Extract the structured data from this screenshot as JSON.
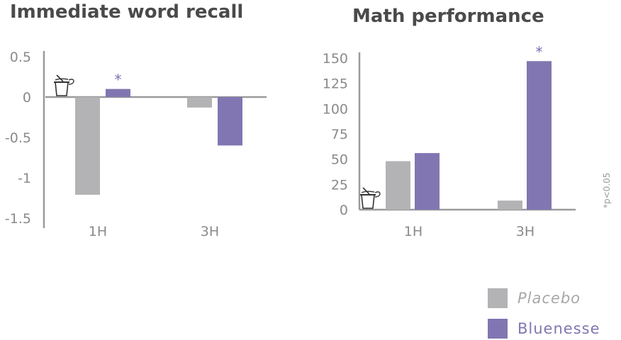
{
  "colors": {
    "placebo": "#b3b3b5",
    "bluenesse": "#8276b2",
    "axis": "#9a9a9a",
    "tick": "#8a8a8a",
    "star": "#7a6fb0"
  },
  "footnote": "*p<0.05",
  "legend": [
    {
      "name": "Placebo",
      "color": "#b3b3b5",
      "italic": true
    },
    {
      "name": "Bluenesse",
      "color": "#8276b2",
      "italic": false
    }
  ],
  "chart_data": [
    {
      "type": "bar",
      "title": "Immediate word recall",
      "categories": [
        "1H",
        "3H"
      ],
      "series": [
        {
          "name": "Placebo",
          "values": [
            -1.21,
            -0.13
          ]
        },
        {
          "name": "Bluenesse",
          "values": [
            0.1,
            -0.6
          ]
        }
      ],
      "ylim": [
        -1.5,
        0.5
      ],
      "yticks": [
        0.5,
        0,
        -0.5,
        -1,
        -1.5
      ],
      "ytick_labels": [
        "0.5",
        "0",
        "-0.5",
        "-1",
        "-1.5"
      ],
      "significance": [
        {
          "category": "1H",
          "series": "Bluenesse",
          "marker": "*"
        }
      ],
      "baseline_icon": "drink-cup-icon"
    },
    {
      "type": "bar",
      "title": "Math performance",
      "categories": [
        "1H",
        "3H"
      ],
      "series": [
        {
          "name": "Placebo",
          "values": [
            48,
            9
          ]
        },
        {
          "name": "Bluenesse",
          "values": [
            56,
            147
          ]
        }
      ],
      "ylim": [
        0,
        150
      ],
      "yticks": [
        0,
        25,
        50,
        75,
        100,
        125,
        150
      ],
      "ytick_labels": [
        "0",
        "25",
        "50",
        "75",
        "100",
        "125",
        "150"
      ],
      "significance": [
        {
          "category": "3H",
          "series": "Bluenesse",
          "marker": "*"
        }
      ],
      "baseline_icon": "drink-cup-icon"
    }
  ]
}
